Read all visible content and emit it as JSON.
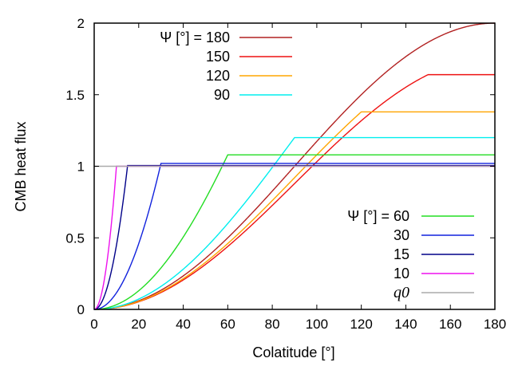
{
  "chart_data": {
    "type": "line",
    "xlabel": "Colatitude [°]",
    "ylabel": "CMB heat flux",
    "xlim": [
      0,
      180
    ],
    "ylim": [
      0,
      2
    ],
    "xticks": [
      0,
      20,
      40,
      60,
      80,
      100,
      120,
      140,
      160,
      180
    ],
    "yticks": [
      0,
      0.5,
      1,
      1.5,
      2
    ],
    "ytick_labels": [
      "0",
      "0.5",
      "1",
      "1.5",
      "2"
    ],
    "grid": false,
    "legends": [
      {
        "position": "top-left",
        "entries": [
          {
            "label": "Ψ [°] = 180",
            "series": "180"
          },
          {
            "label": "150",
            "series": "150"
          },
          {
            "label": "120",
            "series": "120"
          },
          {
            "label": "90",
            "series": "90"
          }
        ]
      },
      {
        "position": "bottom-right",
        "entries": [
          {
            "label": "Ψ [°] = 60",
            "series": "60"
          },
          {
            "label": "30",
            "series": "30"
          },
          {
            "label": "15",
            "series": "15"
          },
          {
            "label": "10",
            "series": "10"
          },
          {
            "label": "q0",
            "series": "q0"
          }
        ]
      }
    ],
    "series": [
      {
        "key": "180",
        "color": "#b22222",
        "psi": 180,
        "plateau": 2.0
      },
      {
        "key": "150",
        "color": "#ee1111",
        "psi": 150,
        "plateau": 1.64
      },
      {
        "key": "120",
        "color": "#ffa500",
        "psi": 120,
        "plateau": 1.38
      },
      {
        "key": "90",
        "color": "#00eeee",
        "psi": 90,
        "plateau": 1.2
      },
      {
        "key": "60",
        "color": "#22dd22",
        "psi": 60,
        "plateau": 1.08
      },
      {
        "key": "30",
        "color": "#1122dd",
        "psi": 30,
        "plateau": 1.02
      },
      {
        "key": "15",
        "color": "#000088",
        "psi": 15,
        "plateau": 1.005
      },
      {
        "key": "10",
        "color": "#ee11ee",
        "psi": 10,
        "plateau": 1.0
      },
      {
        "key": "q0",
        "color": "#aaaaaa",
        "constant": 1.0
      }
    ]
  }
}
